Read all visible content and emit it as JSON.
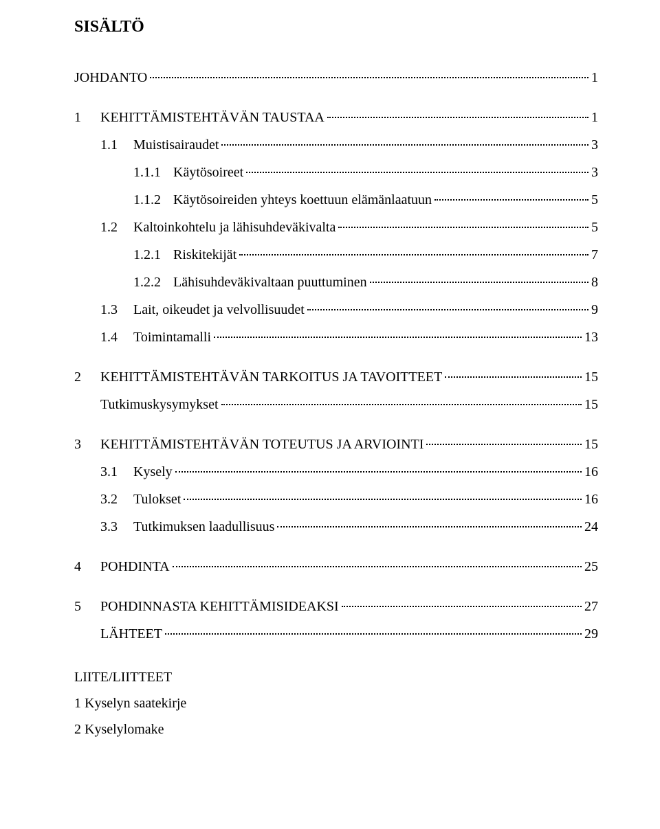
{
  "title": "SISÄLTÖ",
  "entries": [
    {
      "level": 0,
      "num": "",
      "label": "JOHDANTO",
      "page": "1",
      "gap_before": false
    },
    {
      "level": 1,
      "num": "1",
      "label": "KEHITTÄMISTEHTÄVÄN TAUSTAA",
      "page": "1",
      "gap_before": true
    },
    {
      "level": 2,
      "num": "1.1",
      "label": "Muistisairaudet",
      "page": "3",
      "gap_before": false
    },
    {
      "level": 3,
      "num": "1.1.1",
      "label": "Käytösoireet",
      "page": "3",
      "gap_before": false
    },
    {
      "level": 3,
      "num": "1.1.2",
      "label": "Käytösoireiden yhteys koettuun elämänlaatuun",
      "page": "5",
      "gap_before": false
    },
    {
      "level": 2,
      "num": "1.2",
      "label": "Kaltoinkohtelu ja lähisuhdeväkivalta",
      "page": "5",
      "gap_before": false
    },
    {
      "level": 3,
      "num": "1.2.1",
      "label": "Riskitekijät",
      "page": "7",
      "gap_before": false
    },
    {
      "level": 3,
      "num": "1.2.2",
      "label": "Lähisuhdeväkivaltaan puuttuminen",
      "page": "8",
      "gap_before": false
    },
    {
      "level": 2,
      "num": "1.3",
      "label": "Lait, oikeudet ja velvollisuudet",
      "page": "9",
      "gap_before": false
    },
    {
      "level": 2,
      "num": "1.4",
      "label": "Toimintamalli",
      "page": "13",
      "gap_before": false
    },
    {
      "level": 1,
      "num": "2",
      "label": "KEHITTÄMISTEHTÄVÄN TARKOITUS JA TAVOITTEET",
      "page": "15",
      "gap_before": true
    },
    {
      "level": 2,
      "num": "",
      "label": "Tutkimuskysymykset",
      "page": "15",
      "gap_before": false
    },
    {
      "level": 1,
      "num": "3",
      "label": "KEHITTÄMISTEHTÄVÄN TOTEUTUS JA ARVIOINTI",
      "page": "15",
      "gap_before": true
    },
    {
      "level": 2,
      "num": "3.1",
      "label": "Kysely",
      "page": "16",
      "gap_before": false
    },
    {
      "level": 2,
      "num": "3.2",
      "label": "Tulokset",
      "page": "16",
      "gap_before": false
    },
    {
      "level": 2,
      "num": "3.3",
      "label": "Tutkimuksen laadullisuus",
      "page": "24",
      "gap_before": false
    },
    {
      "level": 1,
      "num": "4",
      "label": "POHDINTA",
      "page": "25",
      "gap_before": true
    },
    {
      "level": 1,
      "num": "5",
      "label": "POHDINNASTA KEHITTÄMISIDEAKSI",
      "page": "27",
      "gap_before": true
    },
    {
      "level": 2,
      "num": "",
      "label": "LÄHTEET",
      "page": "29",
      "gap_before": false
    }
  ],
  "appendix": {
    "heading": "LIITE/LIITTEET",
    "items": [
      "1 Kyselyn saatekirje",
      "2 Kyselylomake"
    ]
  }
}
